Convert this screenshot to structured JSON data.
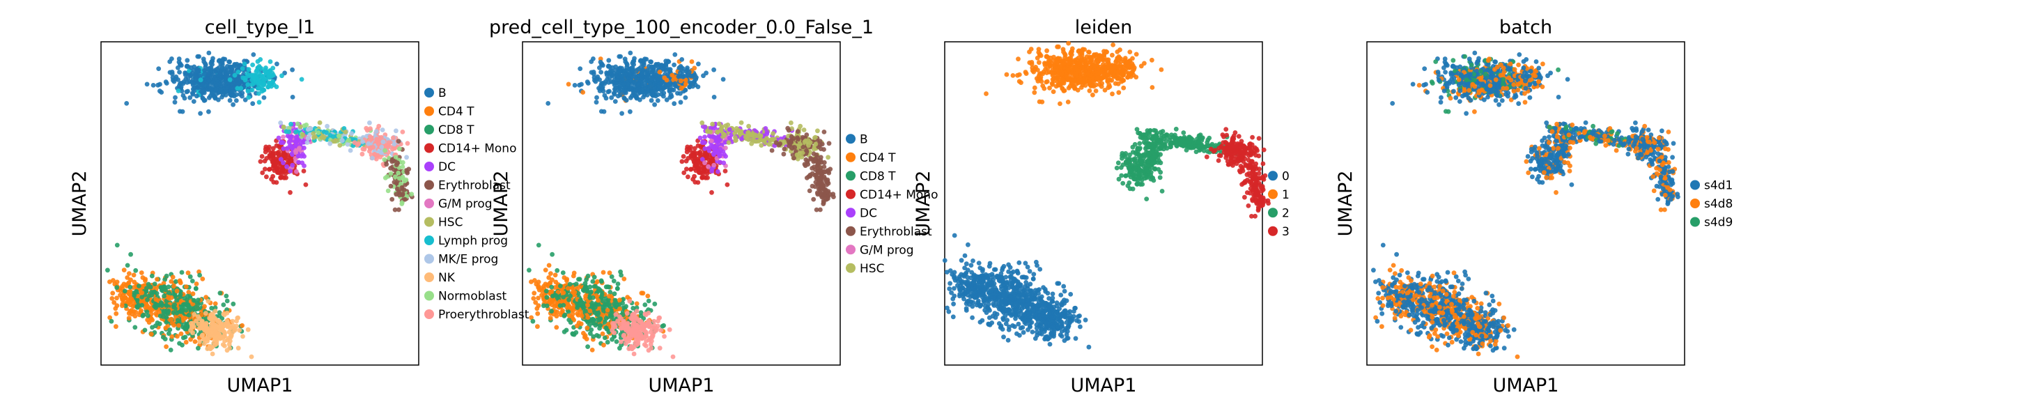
{
  "palette": {
    "B": "#1f77b4",
    "CD4 T": "#ff7f0e",
    "CD8 T": "#279e68",
    "CD14+ Mono": "#d62728",
    "DC": "#aa40fc",
    "Erythroblast": "#8c564b",
    "G/M prog": "#e377c2",
    "HSC": "#b5bd61",
    "Lymph prog": "#17becf",
    "MK/E prog": "#aec7e8",
    "NK": "#ffbb78",
    "Normoblast": "#98df8a",
    "Proerythroblast": "#ff9896",
    "0": "#1f77b4",
    "1": "#ff7f0e",
    "2": "#279e68",
    "3": "#d62728",
    "s4d1": "#1f77b4",
    "s4d8": "#ff7f0e",
    "s4d9": "#279e68"
  },
  "chart_data": [
    {
      "type": "scatter",
      "title": "cell_type_l1",
      "xlabel": "UMAP1",
      "ylabel": "UMAP2",
      "legend_position": "right",
      "legend": [
        "B",
        "CD4 T",
        "CD8 T",
        "CD14+ Mono",
        "DC",
        "Erythroblast",
        "G/M prog",
        "HSC",
        "Lymph prog",
        "MK/E prog",
        "NK",
        "Normoblast",
        "Proerythroblast"
      ]
    },
    {
      "type": "scatter",
      "title": "pred_cell_type_100_encoder_0.0_False_1",
      "xlabel": "UMAP1",
      "ylabel": "UMAP2",
      "legend_position": "right",
      "legend": [
        "B",
        "CD4 T",
        "CD8 T",
        "CD14+ Mono",
        "DC",
        "Erythroblast",
        "G/M prog",
        "HSC"
      ]
    },
    {
      "type": "scatter",
      "title": "leiden",
      "xlabel": "UMAP1",
      "ylabel": "UMAP2",
      "legend_position": "right",
      "legend": [
        "0",
        "1",
        "2",
        "3"
      ]
    },
    {
      "type": "scatter",
      "title": "batch",
      "xlabel": "UMAP1",
      "ylabel": "UMAP2",
      "legend_position": "right",
      "legend": [
        "s4d1",
        "s4d8",
        "s4d9"
      ]
    }
  ]
}
